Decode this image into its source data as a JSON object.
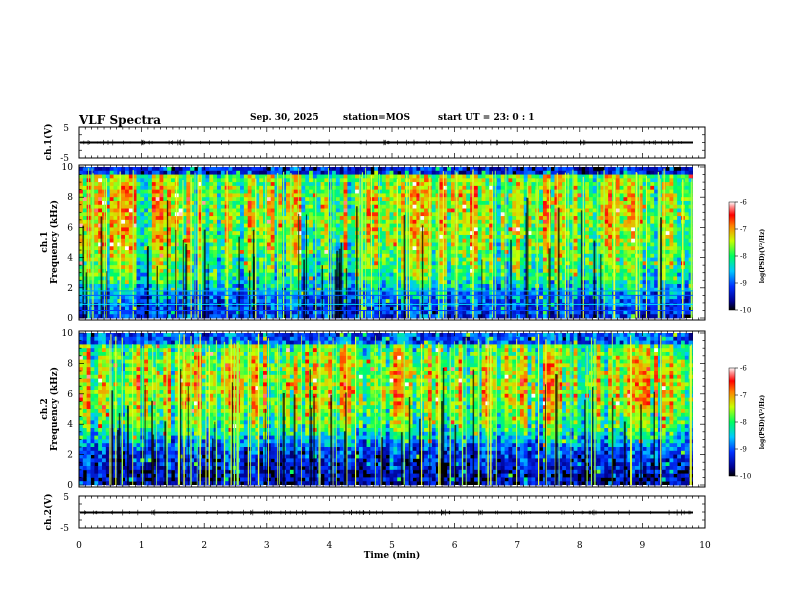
{
  "header": {
    "title": "VLF Spectra",
    "date": "Sep. 30, 2025",
    "station": "station=MOS",
    "start": "start  UT  =   23: 0   : 1"
  },
  "chart_data": [
    {
      "type": "line",
      "title": "ch.1 waveform",
      "ylabel": "ch.1(V)",
      "ylim": [
        -5,
        5
      ],
      "y_ticks": [
        "5",
        "-5"
      ],
      "x_range_min": [
        0,
        10
      ],
      "series": [
        {
          "name": "ch.1",
          "approx_level_V": 0
        }
      ]
    },
    {
      "type": "heatmap",
      "title": "ch.1 spectrogram",
      "ylabel_line1": "ch.1",
      "ylabel_line2": "Frequency (kHz)",
      "ylim_kHz": [
        0,
        10
      ],
      "y_ticks": [
        "10",
        "8",
        "6",
        "4",
        "2",
        "0"
      ],
      "x_range_min": [
        0,
        9.8
      ],
      "colorbar": {
        "label": "log(PSD)(V²/Hz)",
        "range": [
          -10,
          -6
        ],
        "ticks": [
          "-6",
          "-7",
          "-8",
          "-9",
          "-10"
        ]
      },
      "band_kHz": [
        1,
        9.5
      ]
    },
    {
      "type": "heatmap",
      "title": "ch.2 spectrogram",
      "ylabel_line1": "ch.2",
      "ylabel_line2": "Frequency (kHz)",
      "ylim_kHz": [
        0,
        10
      ],
      "y_ticks": [
        "10",
        "8",
        "6",
        "4",
        "2",
        "0"
      ],
      "x_range_min": [
        0,
        9.8
      ],
      "colorbar": {
        "label": "log(PSD)(V²/Hz)",
        "range": [
          -10,
          -6
        ],
        "ticks": [
          "-6",
          "-7",
          "-8",
          "-9",
          "-10"
        ]
      },
      "band_kHz": [
        3,
        9
      ]
    },
    {
      "type": "line",
      "title": "ch.2 waveform",
      "ylabel": "ch.2(V)",
      "ylim": [
        -5,
        5
      ],
      "y_ticks": [
        "5",
        "-5"
      ],
      "x_range_min": [
        0,
        10
      ],
      "series": [
        {
          "name": "ch.2",
          "approx_level_V": 0
        }
      ]
    }
  ],
  "x_axis": {
    "label": "Time (min)",
    "ticks": [
      "0",
      "1",
      "2",
      "3",
      "4",
      "5",
      "6",
      "7",
      "8",
      "9",
      "10"
    ]
  }
}
